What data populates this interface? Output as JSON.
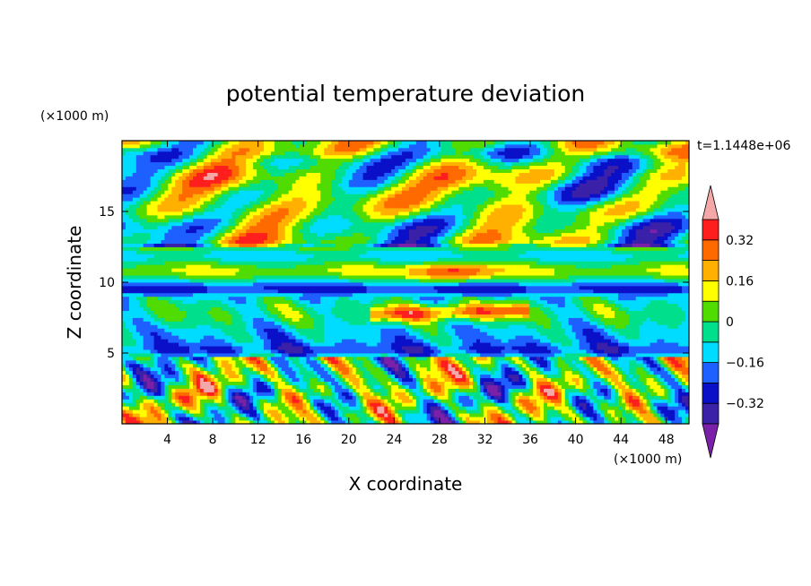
{
  "chart_data": {
    "type": "heatmap",
    "title": "potential temperature deviation",
    "xlabel": "X coordinate",
    "ylabel": "Z coordinate",
    "x_unit": "(×1000 m)",
    "y_unit": "(×1000 m)",
    "time_label": "t=1.1448e+06",
    "xlim": [
      0,
      50
    ],
    "ylim": [
      0,
      20
    ],
    "x_ticks": [
      4,
      8,
      12,
      16,
      20,
      24,
      28,
      32,
      36,
      40,
      44,
      48
    ],
    "y_ticks": [
      5,
      10,
      15
    ],
    "x_tick_labels": [
      "4",
      "8",
      "12",
      "16",
      "20",
      "24",
      "28",
      "32",
      "36",
      "40",
      "44",
      "48"
    ],
    "y_tick_labels": [
      "5",
      "10",
      "15"
    ],
    "colorbar": {
      "levels": [
        -0.4,
        -0.32,
        -0.24,
        -0.16,
        -0.08,
        0,
        0.08,
        0.16,
        0.24,
        0.32,
        0.4
      ],
      "tick_values": [
        -0.32,
        -0.16,
        0,
        0.16,
        0.32
      ],
      "tick_labels": [
        "−0.32",
        "−0.16",
        "0",
        "0.16",
        "0.32"
      ],
      "colors": [
        "#7b20a8",
        "#3b20a8",
        "#0a10c8",
        "#1e60ff",
        "#00dcff",
        "#00e08c",
        "#50dc00",
        "#ffff00",
        "#ffb000",
        "#ff6a00",
        "#ff1e1e",
        "#f5a8a8"
      ],
      "extend": "both"
    }
  }
}
